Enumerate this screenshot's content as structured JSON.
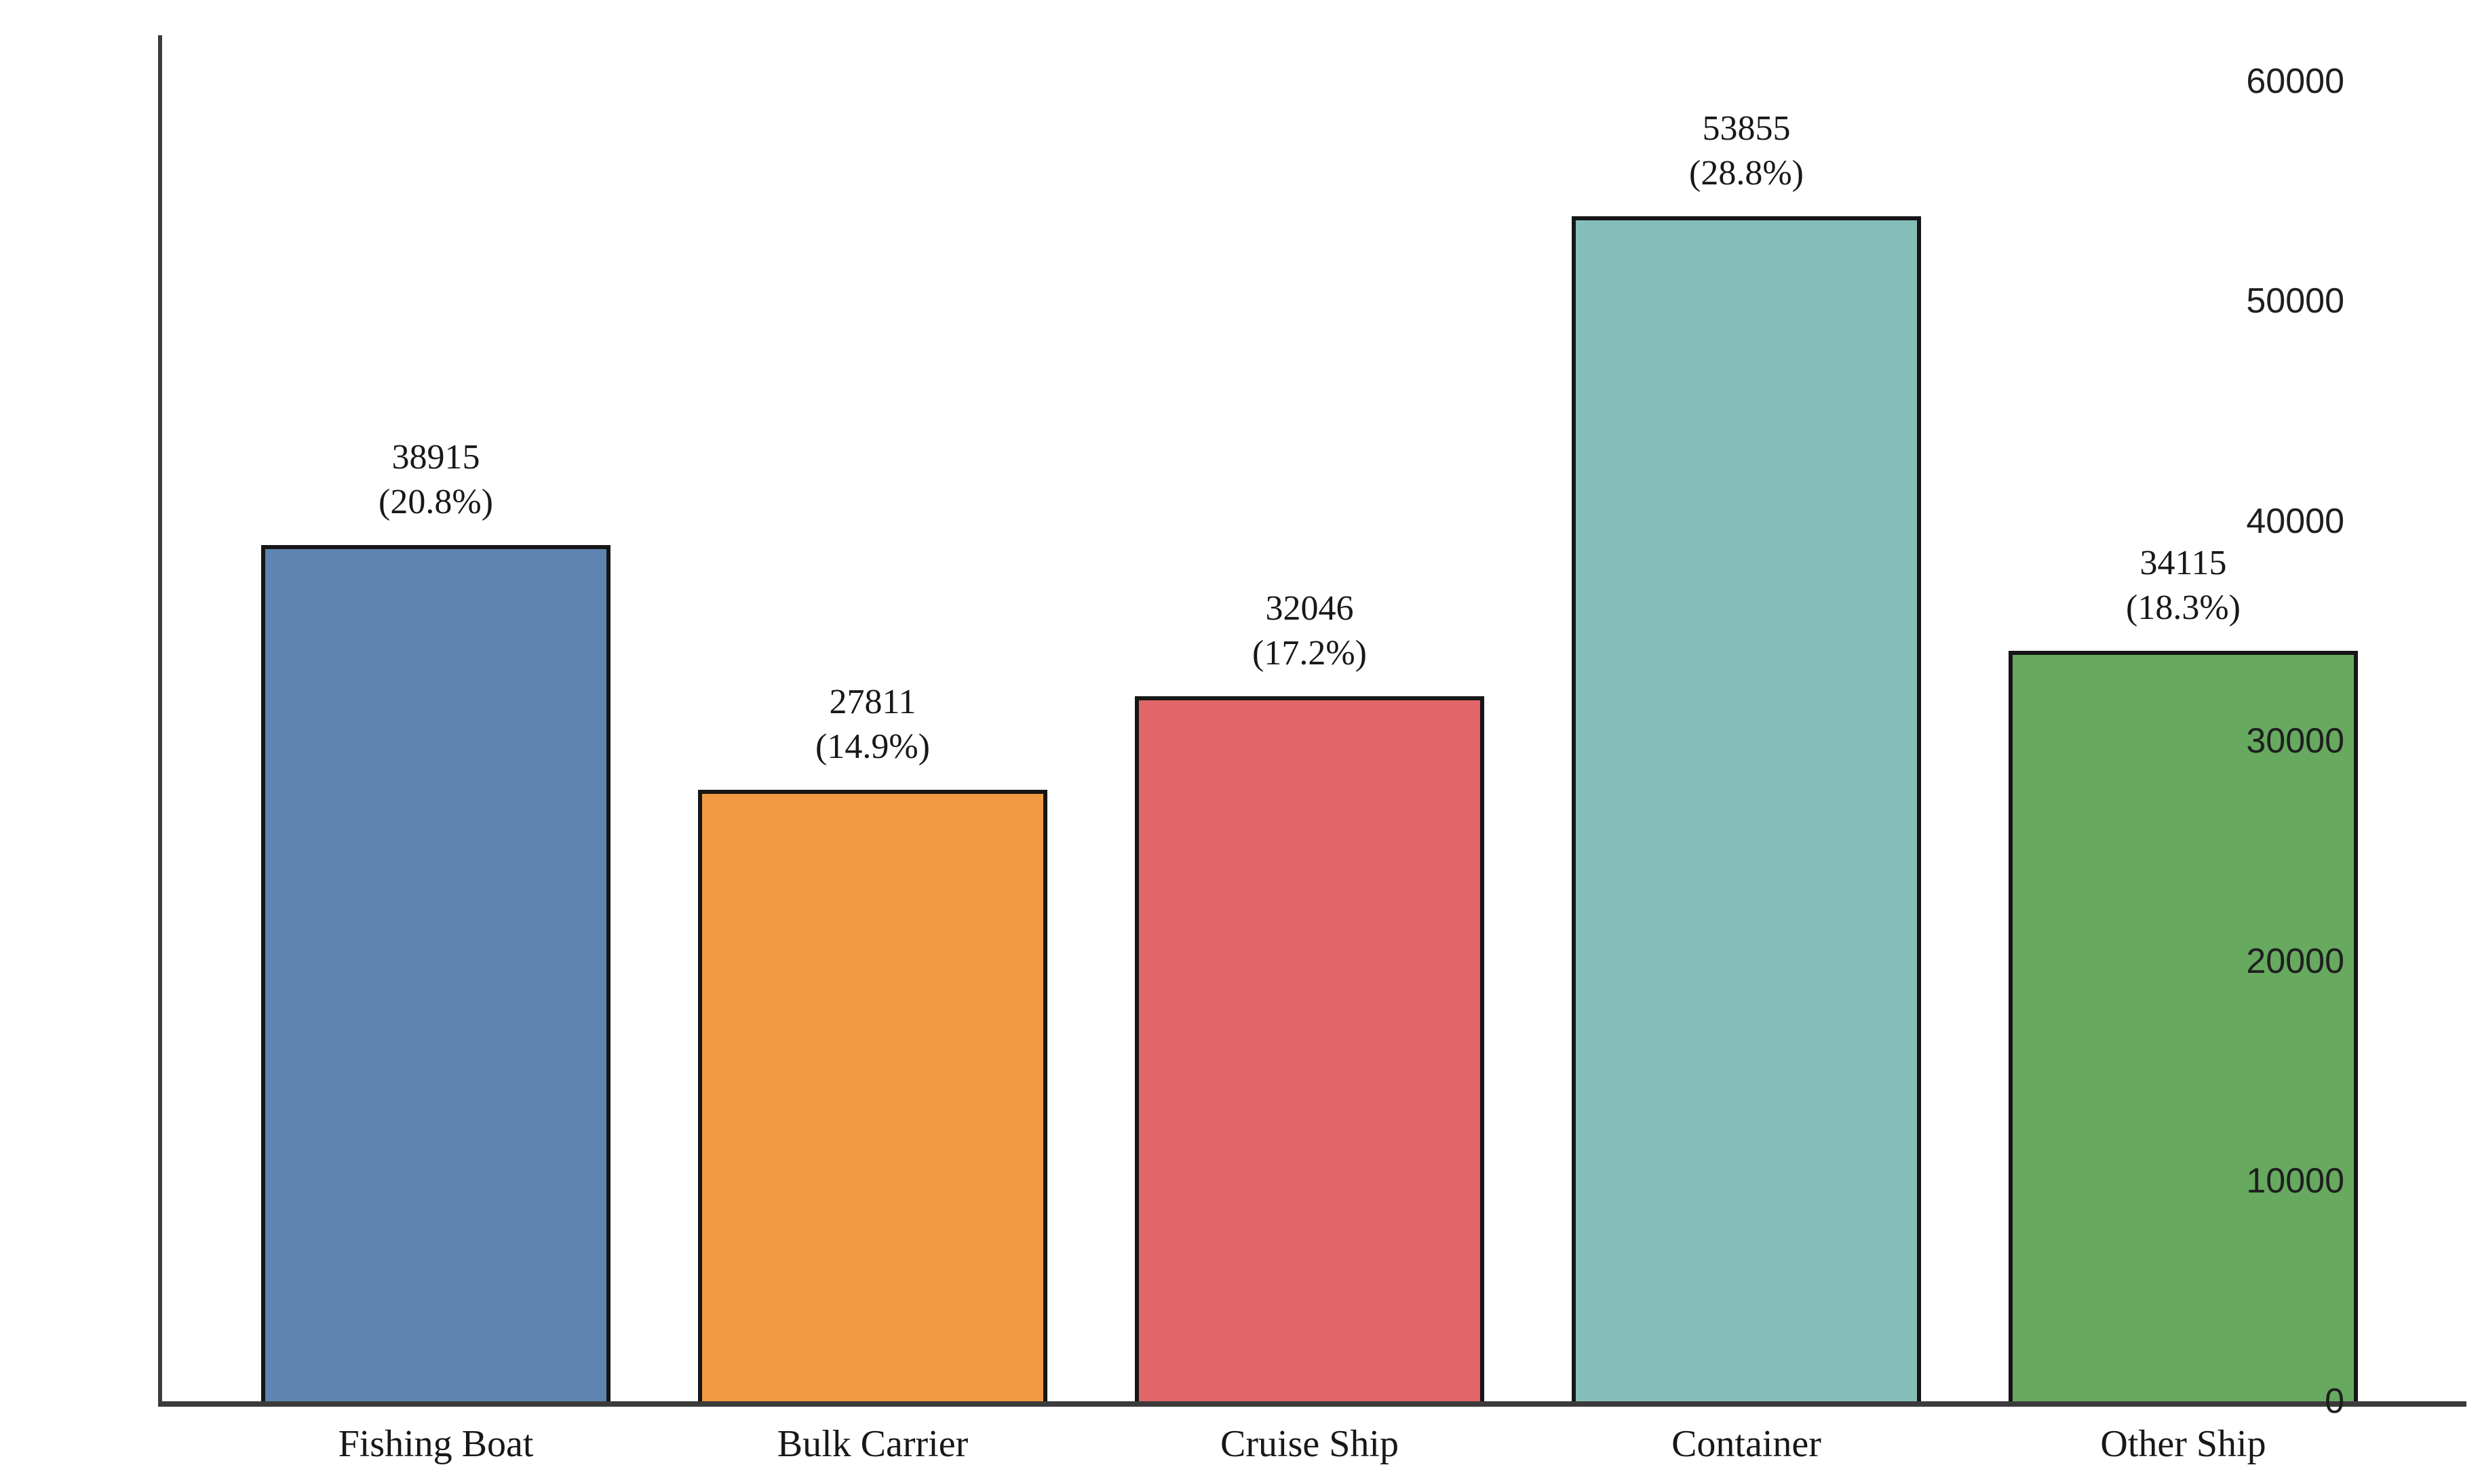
{
  "figure": {
    "background": "#ffffff",
    "axis_color": "#3b3b3b",
    "bar_edge_color": "#161616",
    "text_color": "#181818"
  },
  "chart_data": {
    "type": "bar",
    "title": "",
    "xlabel": "",
    "ylabel": "",
    "categories": [
      "Fishing Boat",
      "Bulk Carrier",
      "Cruise Ship",
      "Container",
      "Other Ship"
    ],
    "values": [
      38915,
      27811,
      32046,
      53855,
      34115
    ],
    "percent_labels": [
      "(20.8%)",
      "(14.9%)",
      "(17.2%)",
      "(28.8%)",
      "(18.3%)"
    ],
    "bar_colors": [
      "#5E84B1",
      "#F09B42",
      "#E0666A",
      "#83BEB8",
      "#67A95F"
    ],
    "yticks": [
      0,
      10000,
      20000,
      30000,
      40000,
      50000,
      60000
    ],
    "ytick_labels": [
      "0",
      "10000",
      "20000",
      "30000",
      "40000",
      "50000",
      "60000"
    ],
    "ylim": [
      0,
      62100
    ],
    "grid": false,
    "legend": false,
    "bar_relative_width": 0.8
  }
}
